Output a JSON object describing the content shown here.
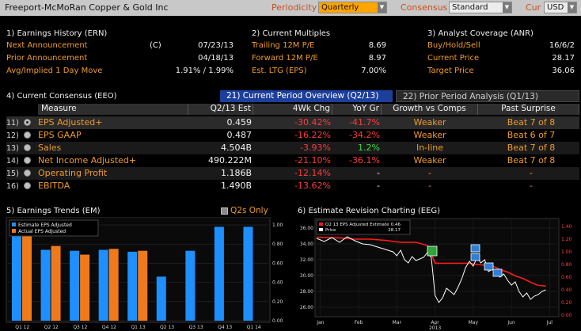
{
  "header": {
    "title": "Freeport-McMoRan Copper & Gold Inc",
    "periodicity_label": "Periodicity",
    "periodicity_value": "Quarterly",
    "consensus_label": "Consensus",
    "consensus_value": "Standard",
    "currency_label": "Cur",
    "currency_value": "USD"
  },
  "earnings_history": {
    "title": "1) Earnings History (ERN)",
    "rows": [
      {
        "label": "Next Announcement",
        "flag": "(C)",
        "value": "07/23/13"
      },
      {
        "label": "Prior Announcement",
        "flag": "",
        "value": "04/18/13"
      },
      {
        "label": "Avg/Implied 1 Day Move",
        "flag": "",
        "value": "1.91% / 1.99%"
      }
    ]
  },
  "current_multiples": {
    "title": "2) Current Multiples",
    "rows": [
      {
        "label": "Trailing 12M P/E",
        "value": "8.69"
      },
      {
        "label": "Forward 12M P/E",
        "value": "8.97"
      },
      {
        "label": "Est. LTG (EPS)",
        "value": "7.00%"
      }
    ]
  },
  "analyst_coverage": {
    "title": "3) Analyst Coverage (ANR)",
    "rows": [
      {
        "label": "Buy/Hold/Sell",
        "value": "16/6/2"
      },
      {
        "label": "Current Price",
        "value": "28.17"
      },
      {
        "label": "Target Price",
        "value": "36.06"
      }
    ]
  },
  "consensus": {
    "title": "4) Current Consensus (EEO)",
    "tab_active": "21) Current Period Overview (Q2/13)",
    "tab_inactive": "22) Prior Period Analysis (Q1/13)",
    "columns": [
      "Measure",
      "Q2/13 Est",
      "4Wk Chg",
      "YoY Gr",
      "Growth vs Comps",
      "Past Surprise"
    ],
    "rows": [
      {
        "num": "11)",
        "measure": "EPS Adjusted+",
        "est": "0.459",
        "chg": "-30.42%",
        "yoy": "-41.7%",
        "growth": "Weaker",
        "past": "Beat 7 of 8"
      },
      {
        "num": "12)",
        "measure": "EPS GAAP",
        "est": "0.487",
        "chg": "-16.22%",
        "yoy": "-34.2%",
        "growth": "Weaker",
        "past": "Beat 6 of 7"
      },
      {
        "num": "13)",
        "measure": "Sales",
        "est": "4.504B",
        "chg": "-3.93%",
        "yoy": "1.2%",
        "growth": "In-line",
        "past": "Beat 7 of 8"
      },
      {
        "num": "14)",
        "measure": "Net Income Adjusted+",
        "est": "490.222M",
        "chg": "-21.10%",
        "yoy": "-36.1%",
        "growth": "Weaker",
        "past": "Beat 7 of 8"
      },
      {
        "num": "15)",
        "measure": "Operating Profit",
        "est": "1.186B",
        "chg": "-12.14%",
        "yoy": "-",
        "growth": "-",
        "past": "-"
      },
      {
        "num": "16)",
        "measure": "EBITDA",
        "est": "1.490B",
        "chg": "-13.62%",
        "yoy": "-",
        "growth": "-",
        "past": "-"
      }
    ]
  },
  "colors": {
    "orange": "#f09a2a",
    "blue": "#1e8fff",
    "red": "#ff1a1a",
    "green": "#3ddc3d",
    "tab_blue": "#1d3f9c"
  },
  "chart_data": [
    {
      "type": "bar",
      "title": "5) Earnings Trends (EM)",
      "toggle_label": "Q2s Only",
      "categories": [
        "Q1 12",
        "Q2 12",
        "Q3 12",
        "Q4 12",
        "Q1 13",
        "Q2 13",
        "Q3 13",
        "Q4 13",
        "Q1 14"
      ],
      "series": [
        {
          "name": "Estimate EPS Adjusted",
          "color": "#1e8fff",
          "values": [
            0.9,
            0.74,
            0.73,
            0.74,
            0.72,
            0.46,
            0.73,
            0.98,
            0.98
          ]
        },
        {
          "name": "Actual EPS Adjusted",
          "color": "#f07a1a",
          "values": [
            0.95,
            0.78,
            0.69,
            0.75,
            0.73,
            null,
            null,
            null,
            null
          ]
        }
      ],
      "yticks": [
        "1.00",
        "0.80",
        "0.60",
        "0.40",
        "0.20",
        "0.00"
      ],
      "ylim": [
        0,
        1.05
      ]
    },
    {
      "type": "line",
      "title": "6) Estimate Revision Charting (EEG)",
      "legend": [
        {
          "name": "Q2 13 EPS Adjusted Estimate",
          "value": "0.46",
          "color": "#ff1a1a"
        },
        {
          "name": "Price",
          "value": "28.17",
          "color": "#ffffff"
        }
      ],
      "x_labels": [
        "Jan",
        "Feb",
        "Mar",
        "Apr",
        "May",
        "Jun",
        "Jul"
      ],
      "year_label": "2013",
      "left_ticks": [
        "36.00",
        "34.00",
        "32.00",
        "30.00",
        "28.00",
        "26.00"
      ],
      "right_ticks": [
        "1.40",
        "1.20",
        "1.00",
        "0.80",
        "0.60",
        "0.40",
        "0.20",
        "0.00"
      ],
      "price_ylim": [
        25,
        37
      ],
      "estimate_ylim": [
        0,
        1.5
      ],
      "price_series": [
        [
          0.0,
          34.7
        ],
        [
          0.2,
          34.3
        ],
        [
          0.4,
          34.8
        ],
        [
          0.6,
          34.2
        ],
        [
          0.8,
          34.9
        ],
        [
          1.0,
          34.4
        ],
        [
          1.2,
          34.0
        ],
        [
          1.4,
          33.9
        ],
        [
          1.6,
          33.6
        ],
        [
          1.8,
          33.3
        ],
        [
          2.0,
          33.0
        ],
        [
          2.1,
          32.5
        ],
        [
          2.2,
          33.2
        ],
        [
          2.3,
          32.0
        ],
        [
          2.4,
          31.6
        ],
        [
          2.5,
          32.4
        ],
        [
          2.6,
          31.9
        ],
        [
          2.8,
          32.3
        ],
        [
          2.9,
          32.9
        ],
        [
          3.0,
          32.3
        ],
        [
          3.05,
          30.0
        ],
        [
          3.1,
          27.5
        ],
        [
          3.2,
          26.6
        ],
        [
          3.3,
          27.2
        ],
        [
          3.4,
          28.4
        ],
        [
          3.5,
          28.0
        ],
        [
          3.6,
          27.6
        ],
        [
          3.7,
          28.5
        ],
        [
          3.8,
          29.6
        ],
        [
          3.9,
          31.0
        ],
        [
          4.0,
          31.8
        ],
        [
          4.1,
          31.2
        ],
        [
          4.2,
          32.3
        ],
        [
          4.3,
          31.6
        ],
        [
          4.4,
          32.0
        ],
        [
          4.5,
          30.5
        ],
        [
          4.6,
          30.8
        ],
        [
          4.7,
          30.4
        ],
        [
          4.8,
          29.8
        ],
        [
          4.9,
          30.2
        ],
        [
          5.0,
          29.4
        ],
        [
          5.1,
          28.8
        ],
        [
          5.2,
          29.2
        ],
        [
          5.3,
          28.0
        ],
        [
          5.4,
          27.3
        ],
        [
          5.5,
          27.8
        ],
        [
          5.6,
          27.0
        ],
        [
          5.7,
          27.4
        ],
        [
          5.8,
          27.6
        ],
        [
          5.9,
          28.0
        ],
        [
          6.0,
          28.2
        ]
      ],
      "estimate_series": [
        [
          0.0,
          1.23
        ],
        [
          0.6,
          1.22
        ],
        [
          1.0,
          1.2
        ],
        [
          1.4,
          1.2
        ],
        [
          1.8,
          1.18
        ],
        [
          2.2,
          1.15
        ],
        [
          2.6,
          1.15
        ],
        [
          2.9,
          1.1
        ],
        [
          3.0,
          0.98
        ],
        [
          3.1,
          0.82
        ],
        [
          3.5,
          0.82
        ],
        [
          4.0,
          0.82
        ],
        [
          4.2,
          0.8
        ],
        [
          4.6,
          0.78
        ],
        [
          4.8,
          0.72
        ],
        [
          5.0,
          0.68
        ],
        [
          5.2,
          0.62
        ],
        [
          5.4,
          0.58
        ],
        [
          5.6,
          0.52
        ],
        [
          5.8,
          0.47
        ],
        [
          6.0,
          0.46
        ]
      ]
    }
  ]
}
